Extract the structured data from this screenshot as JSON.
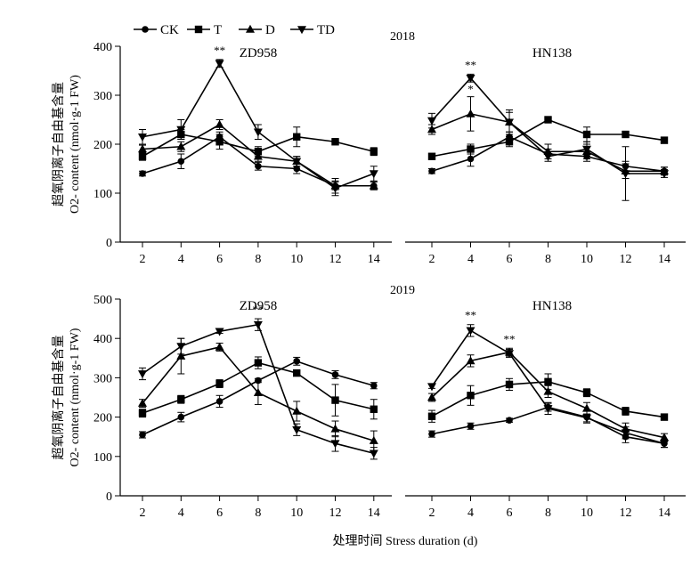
{
  "legend": {
    "items": [
      {
        "label": "CK",
        "marker": "circle"
      },
      {
        "label": "T",
        "marker": "square"
      },
      {
        "label": "D",
        "marker": "triangle-up"
      },
      {
        "label": "TD",
        "marker": "triangle-down"
      }
    ]
  },
  "y_label_line1": "超氧阴离子自由基含量",
  "y_label_line2": "O2- content (nmol·g-1 FW)",
  "x_label": "处理时间 Stress duration (d)",
  "chart_data": [
    {
      "type": "line",
      "year": "2018",
      "panels": [
        {
          "title": "ZD958",
          "x": [
            2,
            4,
            6,
            8,
            10,
            12,
            14
          ],
          "series": [
            {
              "name": "CK",
              "values": [
                140,
                165,
                215,
                155,
                150,
                115,
                115
              ],
              "errors": [
                5,
                15,
                10,
                8,
                10,
                8,
                8
              ]
            },
            {
              "name": "T",
              "values": [
                175,
                220,
                205,
                185,
                215,
                205,
                185
              ],
              "errors": [
                8,
                10,
                15,
                10,
                20,
                5,
                8
              ]
            },
            {
              "name": "D",
              "values": [
                190,
                195,
                240,
                175,
                165,
                115,
                115
              ],
              "errors": [
                8,
                10,
                10,
                10,
                10,
                15,
                8
              ]
            },
            {
              "name": "TD",
              "values": [
                215,
                230,
                365,
                225,
                165,
                110,
                140
              ],
              "errors": [
                15,
                20,
                8,
                15,
                10,
                15,
                15
              ]
            }
          ],
          "annotations": [
            {
              "x": 6,
              "text": "**"
            }
          ],
          "ylim": [
            0,
            400
          ],
          "yticks": [
            0,
            100,
            200,
            300,
            400
          ]
        },
        {
          "title": "HN138",
          "x": [
            2,
            4,
            6,
            8,
            10,
            12,
            14
          ],
          "series": [
            {
              "name": "CK",
              "values": [
                145,
                170,
                215,
                180,
                175,
                155,
                145
              ],
              "errors": [
                5,
                15,
                10,
                10,
                10,
                10,
                8
              ]
            },
            {
              "name": "T",
              "values": [
                175,
                190,
                205,
                250,
                220,
                220,
                208
              ],
              "errors": [
                5,
                10,
                10,
                5,
                15,
                5,
                5
              ]
            },
            {
              "name": "D",
              "values": [
                230,
                262,
                245,
                185,
                185,
                145,
                145
              ],
              "errors": [
                10,
                35,
                20,
                15,
                15,
                15,
                8
              ]
            },
            {
              "name": "TD",
              "values": [
                248,
                335,
                245,
                175,
                190,
                140,
                140
              ],
              "errors": [
                15,
                8,
                25,
                10,
                15,
                55,
                8
              ]
            }
          ],
          "annotations": [
            {
              "x": 4,
              "text": "**"
            },
            {
              "x": 4,
              "text": "*"
            }
          ],
          "ylim": [
            0,
            400
          ],
          "yticks": [
            0,
            100,
            200,
            300,
            400
          ]
        }
      ]
    },
    {
      "type": "line",
      "year": "2019",
      "panels": [
        {
          "title": "ZD958",
          "x": [
            2,
            4,
            6,
            8,
            10,
            12,
            14
          ],
          "series": [
            {
              "name": "CK",
              "values": [
                155,
                200,
                240,
                293,
                342,
                308,
                280
              ],
              "errors": [
                8,
                12,
                15,
                5,
                10,
                10,
                8
              ]
            },
            {
              "name": "T",
              "values": [
                210,
                245,
                285,
                338,
                312,
                243,
                220
              ],
              "errors": [
                10,
                10,
                10,
                15,
                5,
                40,
                25
              ]
            },
            {
              "name": "D",
              "values": [
                235,
                355,
                378,
                262,
                215,
                170,
                140
              ],
              "errors": [
                10,
                45,
                10,
                30,
                25,
                20,
                25
              ]
            },
            {
              "name": "TD",
              "values": [
                310,
                380,
                418,
                435,
                168,
                133,
                108
              ],
              "errors": [
                15,
                20,
                5,
                15,
                15,
                20,
                15
              ]
            }
          ],
          "annotations": [
            {
              "x": 8,
              "text": "**"
            }
          ],
          "ylim": [
            0,
            500
          ],
          "yticks": [
            0,
            100,
            200,
            300,
            400,
            500
          ]
        },
        {
          "title": "HN138",
          "x": [
            2,
            4,
            6,
            8,
            10,
            12,
            14
          ],
          "series": [
            {
              "name": "CK",
              "values": [
                157,
                177,
                192,
                225,
                200,
                150,
                133
              ],
              "errors": [
                8,
                8,
                5,
                10,
                15,
                15,
                10
              ]
            },
            {
              "name": "T",
              "values": [
                202,
                255,
                283,
                290,
                262,
                215,
                200
              ],
              "errors": [
                15,
                25,
                15,
                20,
                10,
                10,
                5
              ]
            },
            {
              "name": "D",
              "values": [
                250,
                343,
                365,
                265,
                222,
                170,
                148
              ],
              "errors": [
                10,
                15,
                10,
                15,
                15,
                15,
                10
              ]
            },
            {
              "name": "TD",
              "values": [
                278,
                420,
                362,
                222,
                198,
                160,
                133
              ],
              "errors": [
                5,
                15,
                10,
                15,
                10,
                15,
                10
              ]
            }
          ],
          "annotations": [
            {
              "x": 4,
              "text": "**"
            },
            {
              "x": 6,
              "text": "**"
            }
          ],
          "ylim": [
            0,
            500
          ],
          "yticks": [
            0,
            100,
            200,
            300,
            400,
            500
          ]
        }
      ]
    }
  ]
}
